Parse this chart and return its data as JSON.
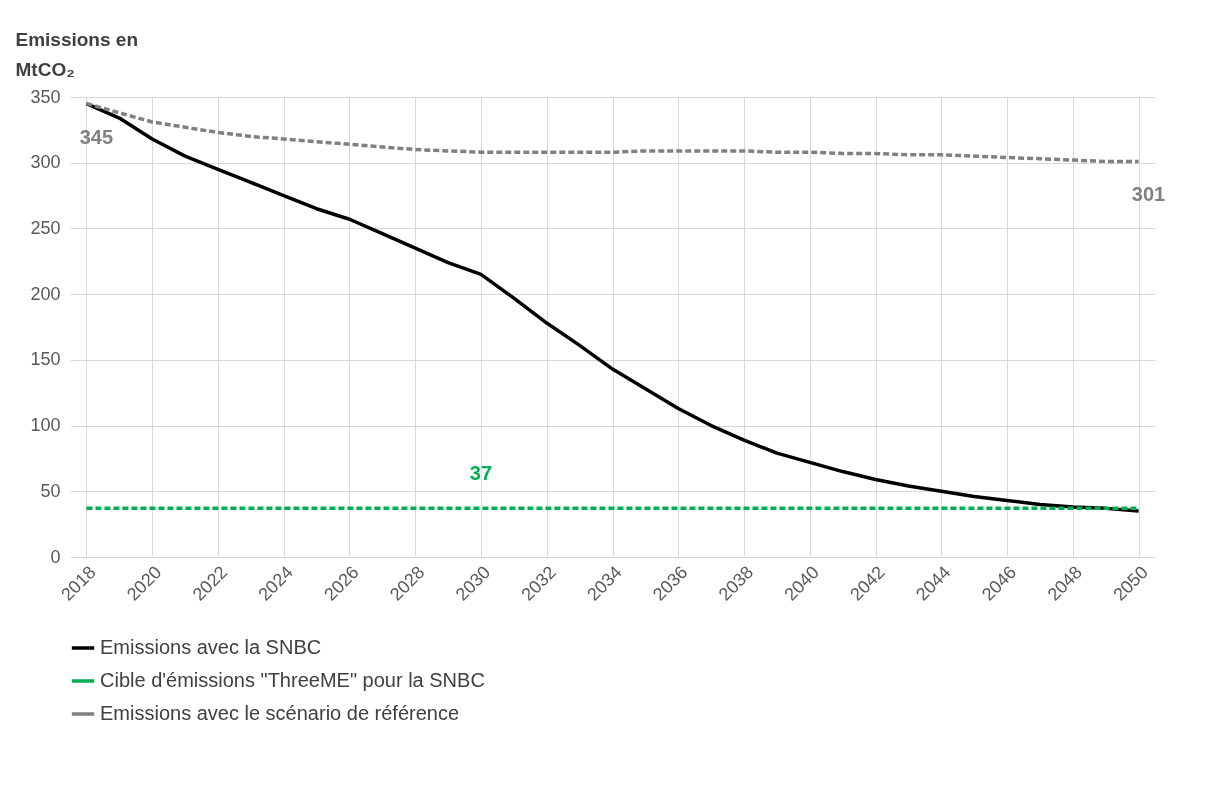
{
  "chart_data": {
    "type": "line",
    "ylabel": "Emissions en MtCO₂",
    "x": [
      2018,
      2019,
      2020,
      2021,
      2022,
      2023,
      2024,
      2025,
      2026,
      2027,
      2028,
      2029,
      2030,
      2031,
      2032,
      2033,
      2034,
      2035,
      2036,
      2037,
      2038,
      2039,
      2040,
      2041,
      2042,
      2043,
      2044,
      2045,
      2046,
      2047,
      2048,
      2049,
      2050
    ],
    "xlim": [
      2017.5,
      2050.5
    ],
    "xticks": [
      2018,
      2020,
      2022,
      2024,
      2026,
      2028,
      2030,
      2032,
      2034,
      2036,
      2038,
      2040,
      2042,
      2044,
      2046,
      2048,
      2050
    ],
    "ylim": [
      0,
      350
    ],
    "yticks": [
      0,
      50,
      100,
      150,
      200,
      250,
      300,
      350
    ],
    "grid": true,
    "legend": "bottom",
    "marker": "none",
    "series": [
      {
        "name": "Emissions avec la SNBC",
        "color": "#000000",
        "line_style": "solid",
        "values": [
          345,
          334,
          318,
          305,
          295,
          285,
          275,
          265,
          257,
          246,
          235,
          224,
          215,
          197,
          178,
          161,
          143,
          128,
          113,
          100,
          89,
          79,
          72,
          65,
          59,
          54,
          50,
          46,
          43,
          40,
          38,
          37,
          35
        ]
      },
      {
        "name": "Cible d'émissions \"ThreeME\" pour la SNBC",
        "color": "#00b050",
        "line_style": "dashed",
        "values": [
          37,
          37,
          37,
          37,
          37,
          37,
          37,
          37,
          37,
          37,
          37,
          37,
          37,
          37,
          37,
          37,
          37,
          37,
          37,
          37,
          37,
          37,
          37,
          37,
          37,
          37,
          37,
          37,
          37,
          37,
          37,
          37,
          37
        ]
      },
      {
        "name": "Emissions avec le scénario de référence",
        "color": "#808080",
        "line_style": "dashed",
        "values": [
          345,
          338,
          331,
          327,
          323,
          320,
          318,
          316,
          314,
          312,
          310,
          309,
          308,
          308,
          308,
          308,
          308,
          309,
          309,
          309,
          309,
          308,
          308,
          307,
          307,
          306,
          306,
          305,
          304,
          303,
          302,
          301,
          301
        ]
      }
    ],
    "annotations": [
      {
        "text": "345",
        "x": 2018,
        "y": 345
      },
      {
        "text": "37",
        "x": 2030,
        "y": 37
      },
      {
        "text": "301",
        "x": 2050,
        "y": 301
      }
    ]
  }
}
